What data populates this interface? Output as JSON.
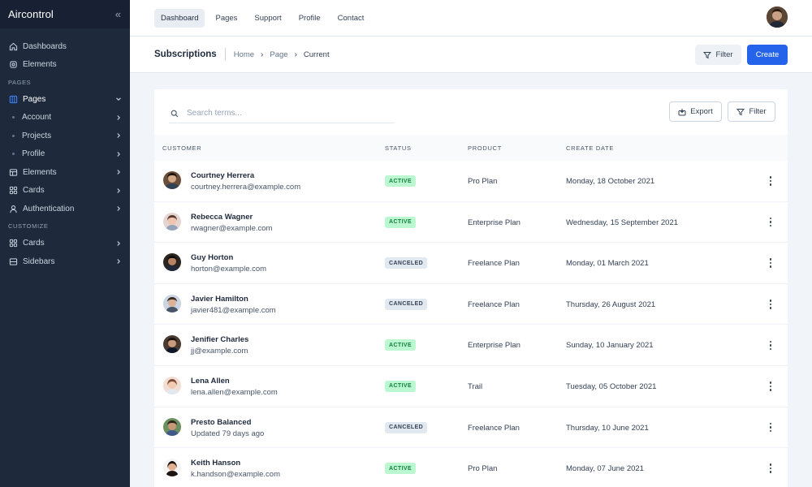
{
  "app": {
    "name": "Aircontrol"
  },
  "sidebar": {
    "items_top": [
      {
        "label": "Dashboards",
        "icon": "home-icon"
      },
      {
        "label": "Elements",
        "icon": "cog-icon"
      }
    ],
    "section_pages": "PAGES",
    "pages": {
      "label": "Pages",
      "icon": "layout-icon"
    },
    "pages_sub": [
      {
        "label": "Account"
      },
      {
        "label": "Projects"
      },
      {
        "label": "Profile"
      }
    ],
    "items_mid": [
      {
        "label": "Elements",
        "icon": "columns-icon"
      },
      {
        "label": "Cards",
        "icon": "grid-icon"
      },
      {
        "label": "Authentication",
        "icon": "user-icon"
      }
    ],
    "section_customize": "CUSTOMIZE",
    "items_bottom": [
      {
        "label": "Cards",
        "icon": "grid-icon"
      },
      {
        "label": "Sidebars",
        "icon": "sidebar-icon"
      }
    ]
  },
  "topnav": {
    "tabs": [
      {
        "label": "Dashboard"
      },
      {
        "label": "Pages"
      },
      {
        "label": "Support"
      },
      {
        "label": "Profile"
      },
      {
        "label": "Contact"
      }
    ]
  },
  "header": {
    "title": "Subscriptions",
    "breadcrumb": [
      "Home",
      "Page",
      "Current"
    ],
    "filter_label": "Filter",
    "create_label": "Create"
  },
  "table": {
    "search_placeholder": "Search terms...",
    "export_label": "Export",
    "filter_label": "Filter",
    "columns": [
      "CUSTOMER",
      "STATUS",
      "PRODUCT",
      "CREATE DATE"
    ],
    "rows": [
      {
        "name": "Courtney Herrera",
        "email": "courtney.herrera@example.com",
        "status": "ACTIVE",
        "product": "Pro Plan",
        "date": "Monday, 18 October 2021"
      },
      {
        "name": "Rebecca Wagner",
        "email": "rwagner@example.com",
        "status": "ACTIVE",
        "product": "Enterprise Plan",
        "date": "Wednesday, 15 September 2021"
      },
      {
        "name": "Guy Horton",
        "email": "horton@example.com",
        "status": "CANCELED",
        "product": "Freelance Plan",
        "date": "Monday, 01 March 2021"
      },
      {
        "name": "Javier Hamilton",
        "email": "javier481@example.com",
        "status": "CANCELED",
        "product": "Freelance Plan",
        "date": "Thursday, 26 August 2021"
      },
      {
        "name": "Jenifier Charles",
        "email": "jj@example.com",
        "status": "ACTIVE",
        "product": "Enterprise Plan",
        "date": "Sunday, 10 January 2021"
      },
      {
        "name": "Lena Allen",
        "email": "lena.allen@example.com",
        "status": "ACTIVE",
        "product": "Trail",
        "date": "Tuesday, 05 October 2021"
      },
      {
        "name": "Presto Balanced",
        "email": "Updated 79 days ago",
        "status": "CANCELED",
        "product": "Freelance Plan",
        "date": "Thursday, 10 June 2021"
      },
      {
        "name": "Keith Hanson",
        "email": "k.handson@example.com",
        "status": "ACTIVE",
        "product": "Pro Plan",
        "date": "Monday, 07 June 2021"
      }
    ]
  },
  "colors": {
    "sidebar_bg": "#1e293b",
    "accent": "#2563eb",
    "active_badge": "#bbf7d0",
    "canceled_badge": "#e2e8f0"
  }
}
